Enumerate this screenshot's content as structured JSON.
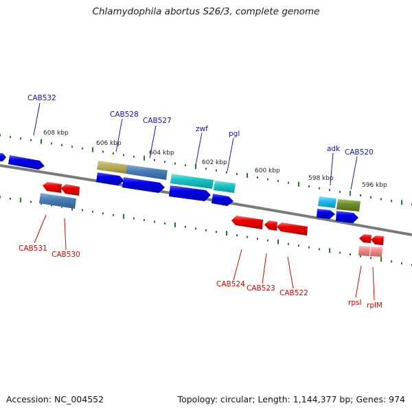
{
  "title": "Chlamydophila abortus S26/3, complete genome",
  "footer": {
    "accession": "Accession: NC_004552",
    "summary": "Topology: circular; Length: 1,144,377 bp; Genes: 974"
  },
  "colors": {
    "strand_line": "#7a7a7a",
    "tick": "#1e7d1e",
    "label_top": "#1010c8",
    "label_bottom": "#dd0000"
  },
  "position_labels": [
    "608 kbp",
    "606 kbp",
    "604 kbp",
    "602 kbp",
    "600 kbp",
    "598 kbp",
    "596 kbp"
  ],
  "gene_labels_top": [
    "CAB532",
    "CAB528",
    "CAB527",
    "zwf",
    "pgl",
    "adk",
    "CAB520"
  ],
  "gene_labels_bottom": [
    "CAB531",
    "CAB530",
    "CAB524",
    "CAB523",
    "CAB522",
    "rpsI",
    "rplM"
  ]
}
